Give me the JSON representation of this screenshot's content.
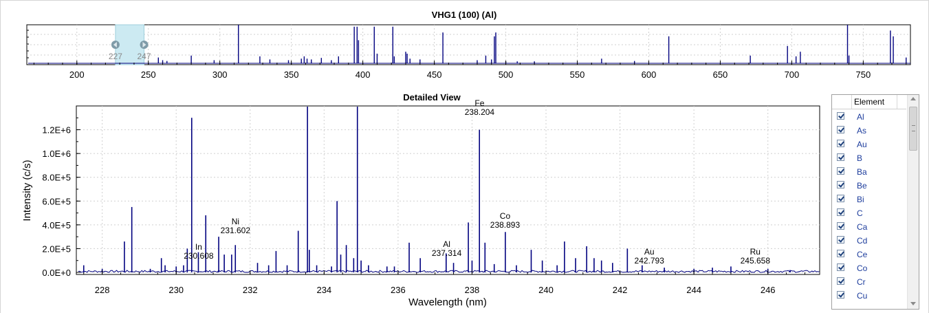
{
  "chart_data": [
    {
      "type": "line",
      "title": "VHG1 (100) (Al)",
      "xlim": [
        165,
        783
      ],
      "x_ticks": [
        200,
        250,
        300,
        350,
        400,
        450,
        500,
        550,
        600,
        650,
        700,
        750
      ],
      "y_ticks_labeled": false,
      "grid": true,
      "series": [
        {
          "color": "#00007f",
          "peaks": [
            [
              257,
              0.15
            ],
            [
              260,
              0.08
            ],
            [
              263,
              0.06
            ],
            [
              280,
              0.2
            ],
            [
              296,
              0.08
            ],
            [
              313,
              1.0
            ],
            [
              328,
              0.18
            ],
            [
              335,
              0.1
            ],
            [
              348,
              0.08
            ],
            [
              357,
              0.12
            ],
            [
              359,
              0.18
            ],
            [
              361,
              0.12
            ],
            [
              364,
              0.1
            ],
            [
              371,
              0.14
            ],
            [
              378,
              0.08
            ],
            [
              383,
              0.18
            ],
            [
              394,
              0.95
            ],
            [
              396,
              0.95
            ],
            [
              397,
              0.6
            ],
            [
              408,
              0.95
            ],
            [
              410,
              0.25
            ],
            [
              421,
              0.95
            ],
            [
              422,
              0.18
            ],
            [
              430,
              0.3
            ],
            [
              431,
              0.25
            ],
            [
              433,
              0.12
            ],
            [
              440,
              0.1
            ],
            [
              456,
              0.8
            ],
            [
              480,
              0.08
            ],
            [
              486,
              0.2
            ],
            [
              490,
              0.1
            ],
            [
              492,
              0.7
            ],
            [
              493,
              0.8
            ],
            [
              500,
              0.05
            ],
            [
              508,
              0.05
            ],
            [
              520,
              0.05
            ],
            [
              567,
              0.12
            ],
            [
              590,
              0.06
            ],
            [
              614,
              0.7
            ],
            [
              671,
              0.2
            ],
            [
              697,
              0.45
            ],
            [
              703,
              0.18
            ],
            [
              706,
              0.3
            ],
            [
              739,
              1.0
            ],
            [
              740,
              0.2
            ],
            [
              769,
              0.85
            ],
            [
              771,
              0.7
            ],
            [
              780,
              0.15
            ]
          ]
        }
      ],
      "selection": {
        "x_range": [
          227,
          247
        ],
        "labels": [
          "227",
          "247"
        ],
        "color": "#cceaf2"
      }
    },
    {
      "type": "line",
      "title": "Detailed View",
      "xlabel": "Wavelength (nm)",
      "ylabel": "Intensity (c/s)",
      "xlim": [
        227.3,
        247.4
      ],
      "ylim": [
        0,
        1400000
      ],
      "x_ticks": [
        228,
        230,
        232,
        234,
        236,
        238,
        240,
        242,
        244,
        246
      ],
      "y_ticks": [
        {
          "value": 0,
          "label": "0.0E+0"
        },
        {
          "value": 200000,
          "label": "2.0E+5"
        },
        {
          "value": 400000,
          "label": "4.0E+5"
        },
        {
          "value": 600000,
          "label": "6.0E+5"
        },
        {
          "value": 800000,
          "label": "8.0E+5"
        },
        {
          "value": 1000000,
          "label": "1.0E+6"
        },
        {
          "value": 1200000,
          "label": "1.2E+6"
        }
      ],
      "grid": true,
      "series": [
        {
          "color": "#00007f",
          "peaks": [
            [
              227.5,
              60000
            ],
            [
              228.0,
              30000
            ],
            [
              228.6,
              260000
            ],
            [
              228.8,
              550000
            ],
            [
              229.3,
              30000
            ],
            [
              229.6,
              120000
            ],
            [
              229.7,
              60000
            ],
            [
              230.0,
              50000
            ],
            [
              230.2,
              60000
            ],
            [
              230.3,
              200000
            ],
            [
              230.42,
              1300000
            ],
            [
              230.6,
              170000
            ],
            [
              230.8,
              480000
            ],
            [
              231.15,
              300000
            ],
            [
              231.3,
              150000
            ],
            [
              231.5,
              150000
            ],
            [
              231.6,
              230000
            ],
            [
              232.2,
              80000
            ],
            [
              232.5,
              60000
            ],
            [
              232.7,
              180000
            ],
            [
              233.0,
              60000
            ],
            [
              233.3,
              350000
            ],
            [
              233.55,
              1400000
            ],
            [
              233.6,
              190000
            ],
            [
              233.8,
              60000
            ],
            [
              234.2,
              50000
            ],
            [
              234.35,
              600000
            ],
            [
              234.45,
              150000
            ],
            [
              234.6,
              230000
            ],
            [
              234.8,
              120000
            ],
            [
              234.9,
              1400000
            ],
            [
              235.0,
              100000
            ],
            [
              235.2,
              60000
            ],
            [
              235.7,
              50000
            ],
            [
              235.9,
              50000
            ],
            [
              236.3,
              250000
            ],
            [
              236.6,
              120000
            ],
            [
              237.3,
              160000
            ],
            [
              237.5,
              80000
            ],
            [
              237.9,
              420000
            ],
            [
              238.0,
              100000
            ],
            [
              238.2,
              1200000
            ],
            [
              238.35,
              250000
            ],
            [
              238.6,
              70000
            ],
            [
              238.9,
              340000
            ],
            [
              239.2,
              60000
            ],
            [
              239.6,
              190000
            ],
            [
              239.9,
              100000
            ],
            [
              240.3,
              60000
            ],
            [
              240.5,
              260000
            ],
            [
              240.8,
              120000
            ],
            [
              241.1,
              220000
            ],
            [
              241.3,
              120000
            ],
            [
              241.5,
              100000
            ],
            [
              241.8,
              80000
            ],
            [
              242.2,
              200000
            ],
            [
              242.6,
              60000
            ],
            [
              243.2,
              40000
            ],
            [
              244.0,
              30000
            ],
            [
              244.5,
              40000
            ],
            [
              245.0,
              50000
            ],
            [
              246.0,
              30000
            ],
            [
              246.6,
              20000
            ]
          ]
        }
      ],
      "annotations": [
        {
          "element": "In",
          "wavelength": "230.608",
          "x": 230.608,
          "y": 115000
        },
        {
          "element": "Ni",
          "wavelength": "231.602",
          "x": 231.602,
          "y": 330000
        },
        {
          "element": "Fe",
          "wavelength": "238.204",
          "x": 238.204,
          "y": 1325000
        },
        {
          "element": "Co",
          "wavelength": "238.893",
          "x": 238.893,
          "y": 375000
        },
        {
          "element": "Al",
          "wavelength": "237.314",
          "x": 237.314,
          "y": 140000
        },
        {
          "element": "Au",
          "wavelength": "242.793",
          "x": 242.793,
          "y": 75000
        },
        {
          "element": "Ru",
          "wavelength": "245.658",
          "x": 245.658,
          "y": 75000
        }
      ]
    }
  ],
  "elements_panel": {
    "header": "Element",
    "items": [
      "Al",
      "As",
      "Au",
      "B",
      "Ba",
      "Be",
      "Bi",
      "C",
      "Ca",
      "Cd",
      "Ce",
      "Co",
      "Cr",
      "Cu"
    ]
  }
}
